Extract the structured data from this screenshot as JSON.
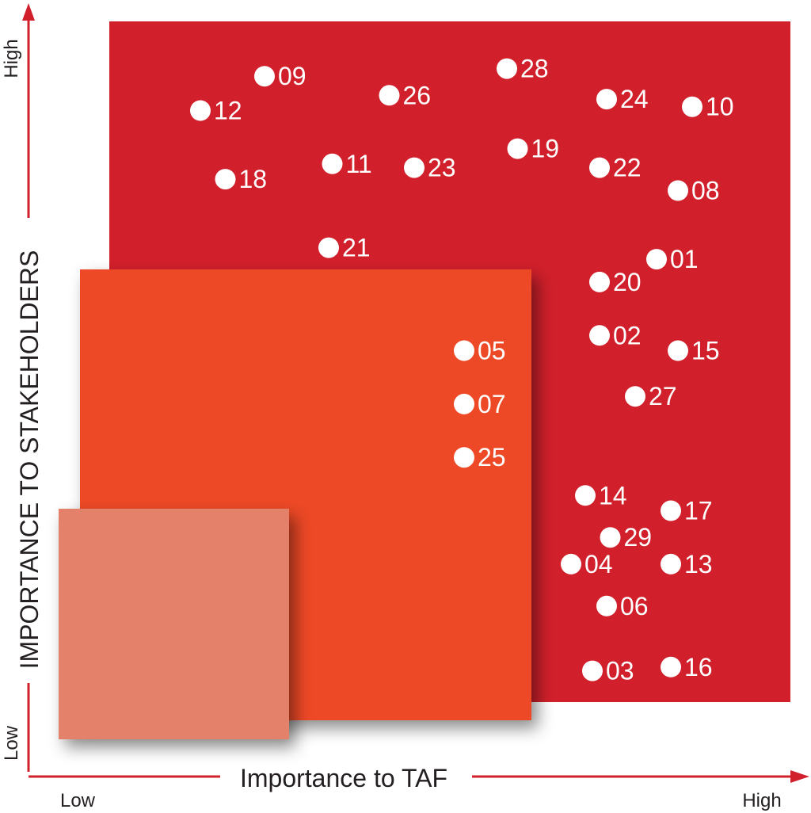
{
  "colors": {
    "high_zone": "#d1202b",
    "medium_zone": "#ee4a25",
    "low_zone": "#e3816a",
    "axis": "#d1202b",
    "point": "#ffffff",
    "text": "#231f20"
  },
  "chart_data": {
    "type": "scatter",
    "title": "",
    "xlabel": "Importance to TAF",
    "ylabel": "IMPORTANCE TO STAKEHOLDERS",
    "x_low_label": "Low",
    "x_high_label": "High",
    "y_low_label": "Low",
    "y_high_label": "High",
    "xlim": [
      0,
      100
    ],
    "ylim": [
      0,
      100
    ],
    "grid": false,
    "legend": "none",
    "zones": [
      {
        "name": "high",
        "x": [
          10,
          100
        ],
        "y": [
          14,
          100
        ]
      },
      {
        "name": "medium",
        "x": [
          6,
          65
        ],
        "y": [
          12,
          69
        ]
      },
      {
        "name": "low",
        "x": [
          3.5,
          33
        ],
        "y": [
          9,
          38
        ]
      }
    ],
    "points": [
      {
        "label": "01",
        "x": 81,
        "y": 66
      },
      {
        "label": "02",
        "x": 73,
        "y": 56
      },
      {
        "label": "03",
        "x": 72,
        "y": 12
      },
      {
        "label": "04",
        "x": 69,
        "y": 26
      },
      {
        "label": "05",
        "x": 54,
        "y": 54
      },
      {
        "label": "06",
        "x": 74,
        "y": 20.5
      },
      {
        "label": "07",
        "x": 54,
        "y": 47
      },
      {
        "label": "08",
        "x": 84,
        "y": 75
      },
      {
        "label": "09",
        "x": 26,
        "y": 90
      },
      {
        "label": "10",
        "x": 86,
        "y": 86
      },
      {
        "label": "11",
        "x": 35.5,
        "y": 78.5
      },
      {
        "label": "12",
        "x": 17,
        "y": 85.5
      },
      {
        "label": "13",
        "x": 83,
        "y": 26
      },
      {
        "label": "14",
        "x": 71,
        "y": 35
      },
      {
        "label": "15",
        "x": 84,
        "y": 54
      },
      {
        "label": "16",
        "x": 83,
        "y": 12.5
      },
      {
        "label": "17",
        "x": 83,
        "y": 33
      },
      {
        "label": "18",
        "x": 20.5,
        "y": 76.5
      },
      {
        "label": "19",
        "x": 61.5,
        "y": 80.5
      },
      {
        "label": "20",
        "x": 73,
        "y": 63
      },
      {
        "label": "21",
        "x": 35,
        "y": 67.5
      },
      {
        "label": "22",
        "x": 73,
        "y": 78
      },
      {
        "label": "23",
        "x": 47,
        "y": 78
      },
      {
        "label": "24",
        "x": 74,
        "y": 87
      },
      {
        "label": "25",
        "x": 54,
        "y": 40
      },
      {
        "label": "26",
        "x": 43.5,
        "y": 87.5
      },
      {
        "label": "27",
        "x": 78,
        "y": 48
      },
      {
        "label": "28",
        "x": 60,
        "y": 91
      },
      {
        "label": "29",
        "x": 74.5,
        "y": 29.5
      }
    ]
  }
}
